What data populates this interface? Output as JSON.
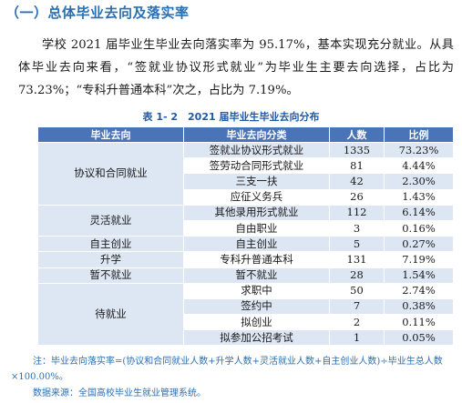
{
  "heading": "（一）总体毕业去向及落实率",
  "paragraph": "学校 2021 届毕业生毕业去向落实率为 95.17%，基本实现充分就业。从具体毕业去向来看，“签就业协议形式就业”为毕业生主要去向选择，占比为 73.23%；“专科升普通本科”次之，占比为 7.19%。",
  "caption": "表 1- 2　2021 届毕业生毕业去向分布",
  "table": {
    "headers": [
      "毕业去向",
      "毕业去向分类",
      "人数",
      "比例"
    ],
    "groups": [
      {
        "name": "协议和合同就业",
        "rows": [
          {
            "category": "签就业协议形式就业",
            "count": "1335",
            "ratio": "73.23%"
          },
          {
            "category": "签劳动合同形式就业",
            "count": "81",
            "ratio": "4.44%"
          },
          {
            "category": "三支一扶",
            "count": "42",
            "ratio": "2.30%"
          },
          {
            "category": "应征义务兵",
            "count": "26",
            "ratio": "1.43%"
          }
        ]
      },
      {
        "name": "灵活就业",
        "rows": [
          {
            "category": "其他录用形式就业",
            "count": "112",
            "ratio": "6.14%"
          },
          {
            "category": "自由职业",
            "count": "3",
            "ratio": "0.16%"
          }
        ]
      },
      {
        "name": "自主创业",
        "rows": [
          {
            "category": "自主创业",
            "count": "5",
            "ratio": "0.27%"
          }
        ]
      },
      {
        "name": "升学",
        "rows": [
          {
            "category": "专科升普通本科",
            "count": "131",
            "ratio": "7.19%"
          }
        ]
      },
      {
        "name": "暂不就业",
        "rows": [
          {
            "category": "暂不就业",
            "count": "28",
            "ratio": "1.54%"
          }
        ]
      },
      {
        "name": "待就业",
        "rows": [
          {
            "category": "求职中",
            "count": "50",
            "ratio": "2.74%"
          },
          {
            "category": "签约中",
            "count": "7",
            "ratio": "0.38%"
          },
          {
            "category": "拟创业",
            "count": "2",
            "ratio": "0.11%"
          },
          {
            "category": "拟参加公招考试",
            "count": "1",
            "ratio": "0.05%"
          }
        ]
      }
    ]
  },
  "note_line1": "注：毕业去向落实率=(协议和合同就业人数+升学人数+灵活就业人数+自主创业人数)÷毕业生总人数",
  "note_line2": "×100.00%。",
  "source": "数据来源：全国高校毕业生就业管理系统。",
  "colors": {
    "accent": "#2a6fb3",
    "header_bg": "#4a74b8",
    "row_shade": "#dde6f3"
  }
}
